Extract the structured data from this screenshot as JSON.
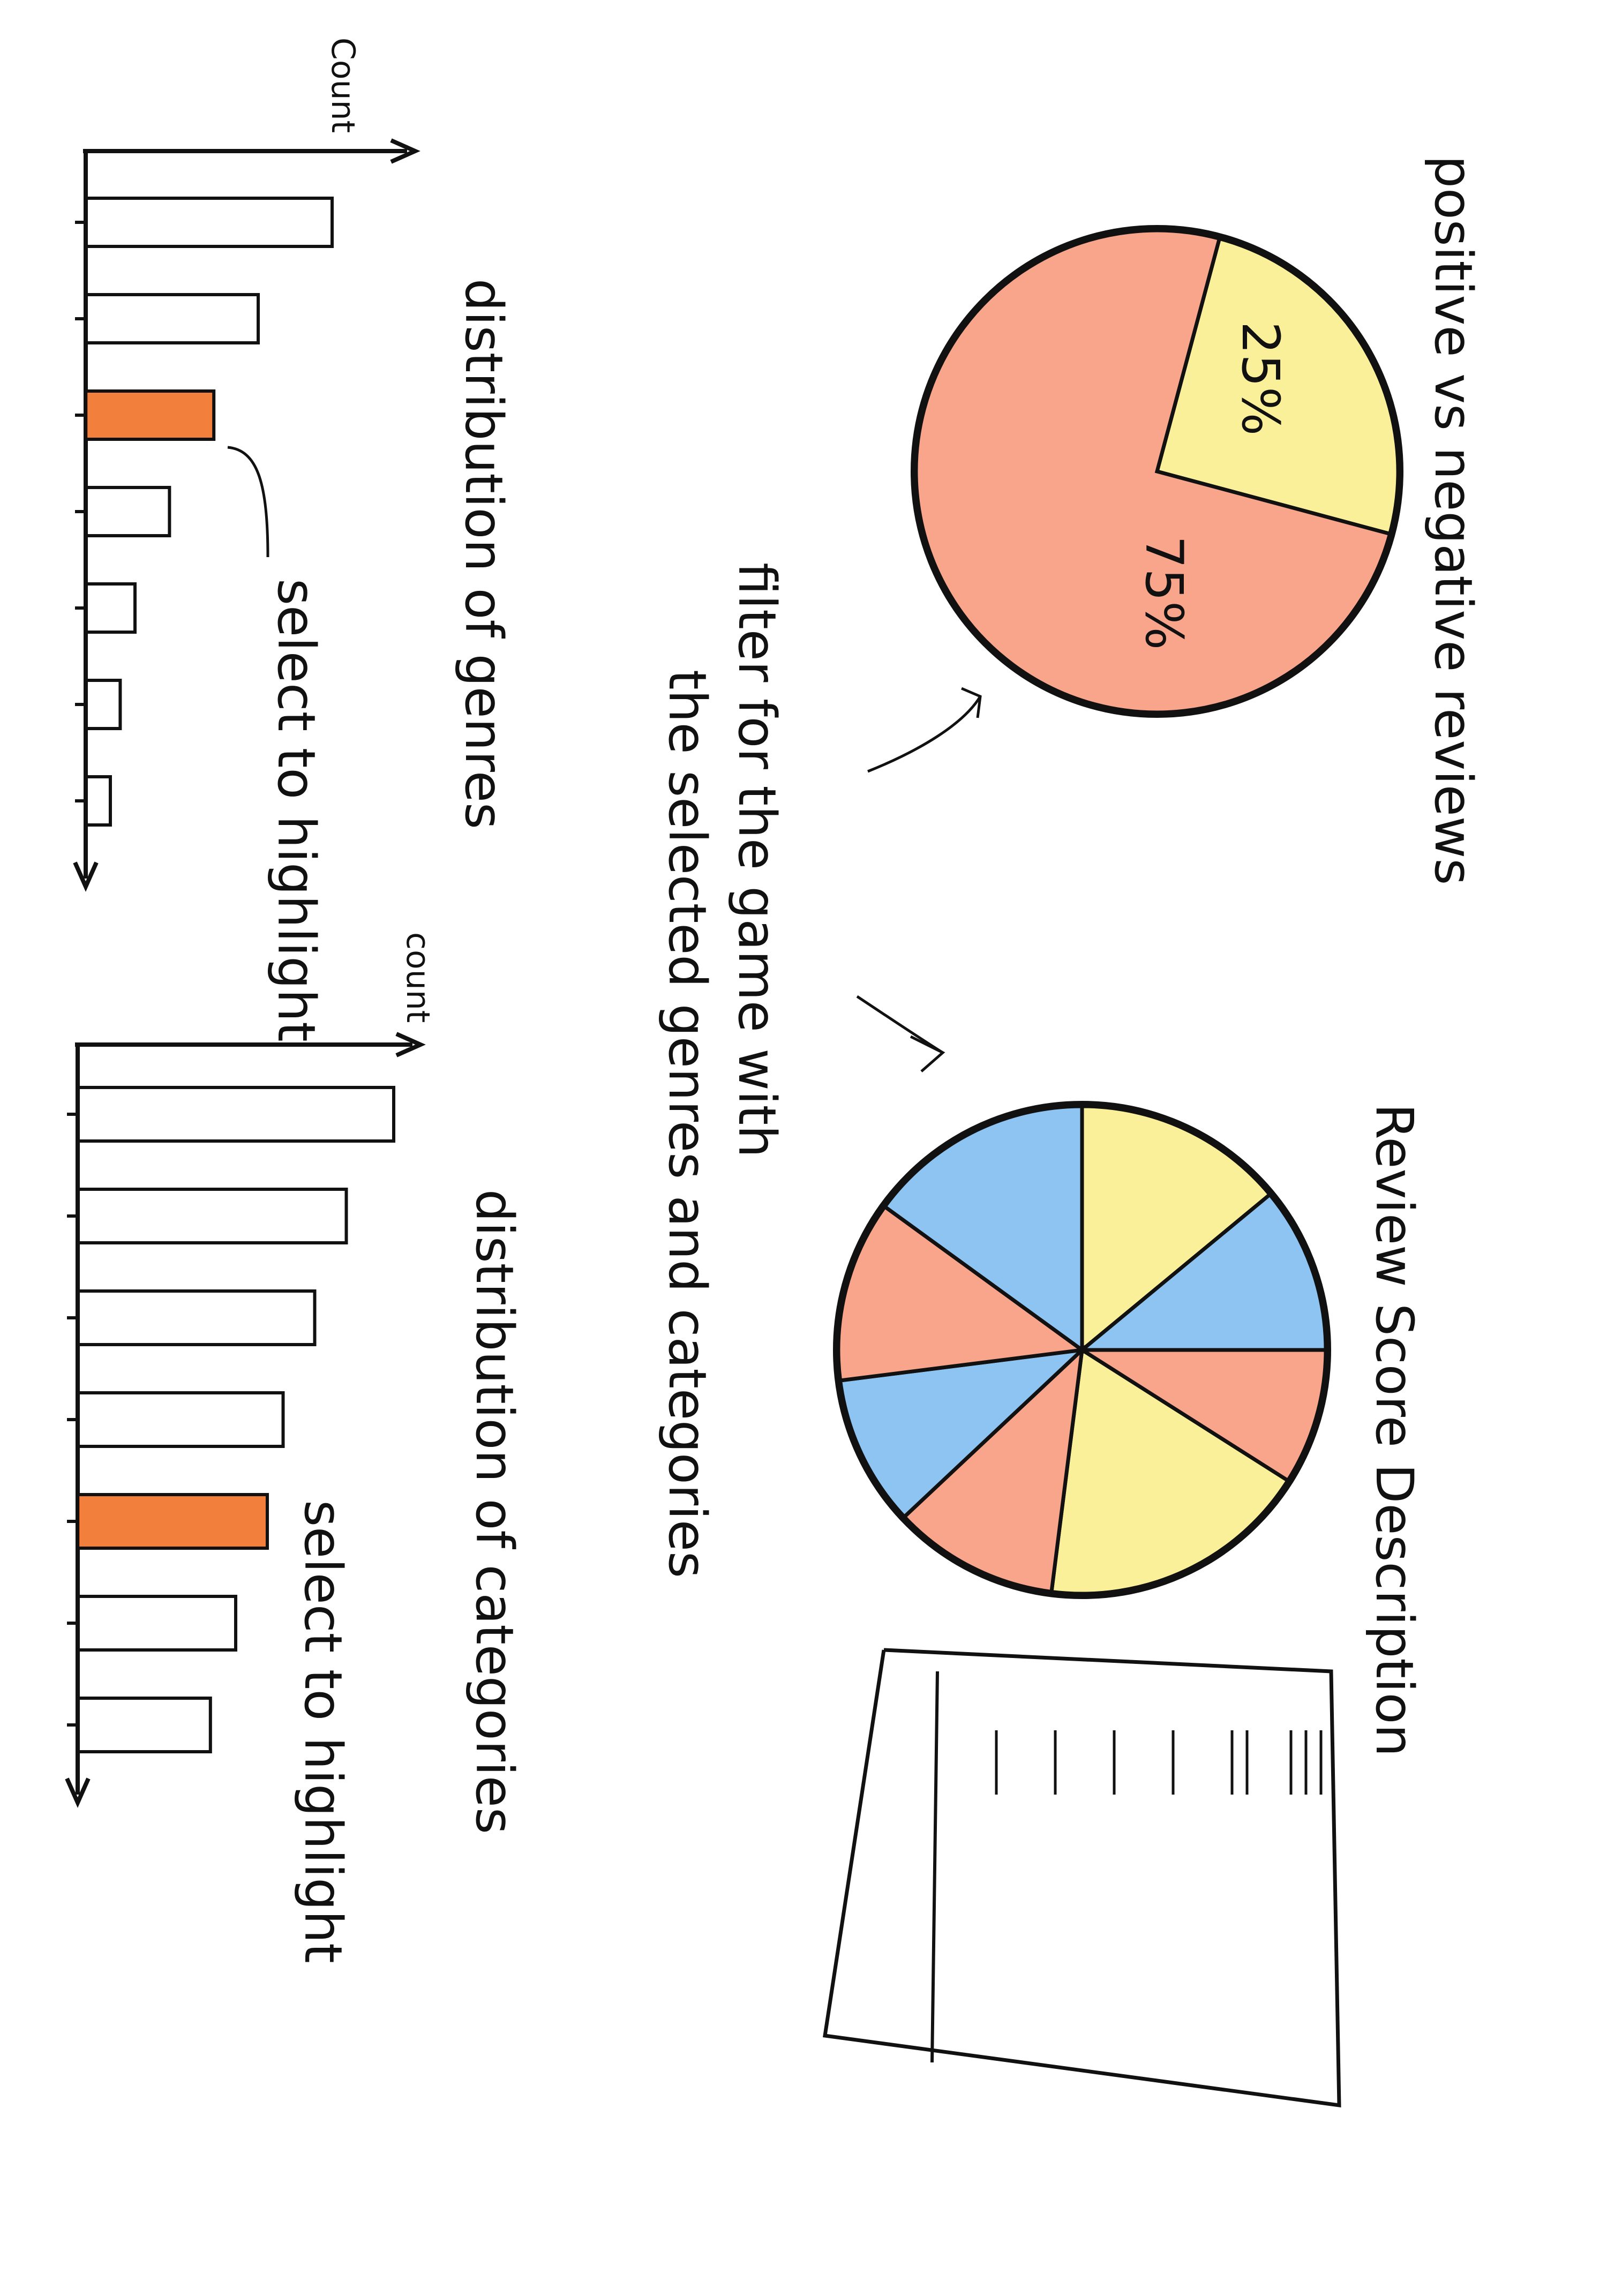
{
  "labels": {
    "count_top": "Count",
    "genres_caption": "distribution of genres",
    "genres_select": "select to highlight",
    "count_bottom": "count",
    "categories_caption": "distribution of categories",
    "categories_select": "select to highlight",
    "filter_line1": "filter for the game with",
    "filter_line2": "the selected genres and categories",
    "pie1_title": "positive vs negative reviews",
    "pie1_pct_positive": "25%",
    "pie1_pct_negative": "75%",
    "pie2_title": "Review Score Description"
  },
  "colors": {
    "salmon": "#f8a58c",
    "yellow": "#fbf09a",
    "blue": "#8ec4f2",
    "highlight": "#f0681a",
    "ink": "#111111"
  },
  "chart_data": [
    {
      "type": "bar",
      "name": "distribution of genres",
      "ylabel": "Count",
      "values": [
        1.0,
        0.7,
        0.52,
        0.34,
        0.2,
        0.14,
        0.1
      ],
      "highlighted_index": 2
    },
    {
      "type": "pie",
      "name": "positive vs negative reviews",
      "slices": [
        {
          "label": "25%",
          "value": 25,
          "color": "yellow"
        },
        {
          "label": "75%",
          "value": 75,
          "color": "salmon"
        }
      ]
    },
    {
      "type": "bar",
      "name": "distribution of categories",
      "ylabel": "count",
      "values": [
        1.0,
        0.85,
        0.75,
        0.65,
        0.6,
        0.5,
        0.42
      ],
      "highlighted_index": 4
    },
    {
      "type": "pie",
      "name": "Review Score Description",
      "slices": [
        {
          "value": 14,
          "color": "yellow"
        },
        {
          "value": 11,
          "color": "blue"
        },
        {
          "value": 9,
          "color": "salmon"
        },
        {
          "value": 18,
          "color": "yellow"
        },
        {
          "value": 11,
          "color": "salmon"
        },
        {
          "value": 10,
          "color": "blue"
        },
        {
          "value": 12,
          "color": "salmon"
        },
        {
          "value": 15,
          "color": "blue"
        }
      ]
    }
  ]
}
